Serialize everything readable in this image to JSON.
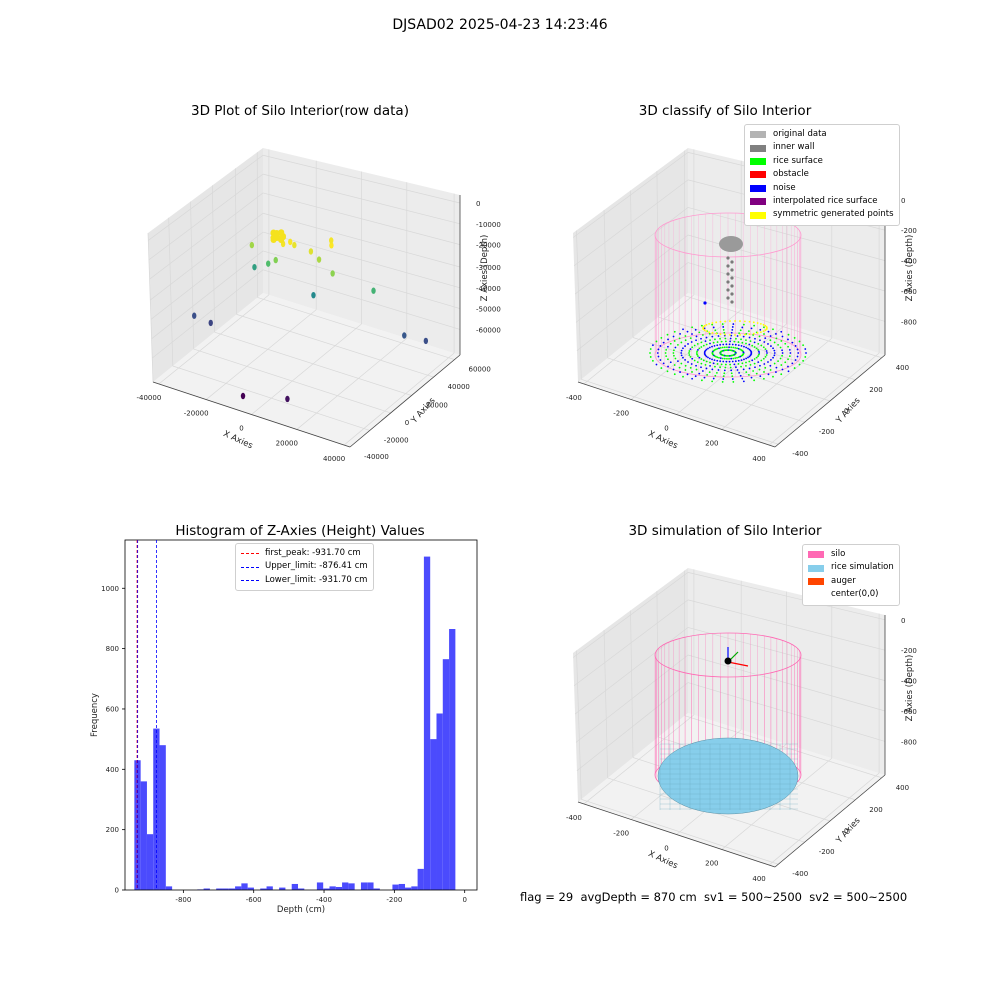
{
  "title": "DJSAD02 2025-04-23 14:23:46",
  "footer": "flag = 29  avgDepth = 870 cm  sv1 = 500~2500  sv2 = 500~2500",
  "chart_data": [
    {
      "type": "scatter",
      "title": "3D Plot of Silo Interior(row data)",
      "xlabel": "X Axies",
      "ylabel": "Y Axies",
      "zlabel": "Z Axies (Depth)",
      "x_ticks": [
        "-40000",
        "-20000",
        "0",
        "20000",
        "40000"
      ],
      "y_ticks": [
        "-40000",
        "-20000",
        "0",
        "20000",
        "40000",
        "60000"
      ],
      "z_ticks": [
        "0",
        "-10000",
        "-20000",
        "-30000",
        "-40000",
        "-50000",
        "-60000"
      ],
      "colormap": "viridis (by depth)",
      "points_xyz": [
        [
          -3000,
          -2000,
          -4000
        ],
        [
          500,
          2000,
          -5000
        ],
        [
          -1000,
          1000,
          -3500
        ],
        [
          8000,
          3000,
          -6000
        ],
        [
          15000,
          9000,
          -3000
        ],
        [
          12000,
          15000,
          -4000
        ],
        [
          -20000,
          2000,
          -12000
        ],
        [
          -8000,
          1000,
          -15000
        ],
        [
          10000,
          7000,
          -11000
        ],
        [
          18000,
          4000,
          -14000
        ],
        [
          -15000,
          8000,
          -22000
        ],
        [
          30000,
          20000,
          -25000
        ],
        [
          -25000,
          15000,
          -30000
        ],
        [
          2000,
          18000,
          -36000
        ],
        [
          40000,
          30000,
          -48000
        ],
        [
          48000,
          35000,
          -50000
        ],
        [
          -42000,
          -10000,
          -50000
        ],
        [
          -35000,
          -8000,
          -52000
        ],
        [
          15000,
          -35000,
          -62000
        ],
        [
          -4000,
          -40000,
          -65000
        ]
      ]
    },
    {
      "type": "scatter",
      "title": "3D classify of Silo Interior",
      "xlabel": "X Axies",
      "ylabel": "Y Axies",
      "zlabel": "Z Axies (Depth)",
      "x_ticks": [
        "-400",
        "-200",
        "0",
        "200",
        "400"
      ],
      "y_ticks": [
        "-400",
        "-200",
        "0",
        "200",
        "400"
      ],
      "z_ticks": [
        "0",
        "-200",
        "-400",
        "-600",
        "-800"
      ],
      "series": [
        {
          "name": "original data",
          "color": "#b3b3b3"
        },
        {
          "name": "inner wall",
          "color": "#808080"
        },
        {
          "name": "rice surface",
          "color": "#00ff00"
        },
        {
          "name": "obstacle",
          "color": "#ff0000"
        },
        {
          "name": "noise",
          "color": "#0000ff"
        },
        {
          "name": "interpolated rice surface",
          "color": "#800080"
        },
        {
          "name": "symmetric generated points",
          "color": "#ffff00"
        }
      ]
    },
    {
      "type": "bar",
      "title": "Histogram of Z-Axies (Height) Values",
      "xlabel": "Depth (cm)",
      "ylabel": "Frequency",
      "xlim": [
        -966,
        35
      ],
      "ylim": [
        0,
        1160
      ],
      "x_ticks": [
        "-800",
        "-600",
        "-400",
        "-200",
        "0"
      ],
      "y_ticks": [
        "0",
        "200",
        "400",
        "600",
        "800",
        "1000"
      ],
      "bin_width": 17.9,
      "bins_left_edge": [
        -939.4,
        -921.5,
        -903.6,
        -885.7,
        -867.8,
        -849.9,
        -832.0,
        -814.1,
        -796.2,
        -778.3,
        -760.4,
        -742.5,
        -724.6,
        -706.7,
        -688.8,
        -670.9,
        -653.0,
        -635.1,
        -617.2,
        -599.3,
        -581.4,
        -563.5,
        -545.6,
        -527.7,
        -509.8,
        -491.9,
        -474.0,
        -456.1,
        -438.2,
        -420.3,
        -402.4,
        -384.5,
        -366.6,
        -348.7,
        -330.8,
        -312.9,
        -295.0,
        -277.1,
        -259.2,
        -241.3,
        -223.4,
        -205.5,
        -187.6,
        -169.7,
        -151.8,
        -133.9,
        -116.0,
        -98.1,
        -80.2,
        -62.3,
        -44.4,
        -26.5,
        -8.6
      ],
      "counts": [
        430,
        360,
        185,
        535,
        480,
        12,
        0,
        0,
        0,
        0,
        2,
        5,
        0,
        5,
        5,
        5,
        12,
        22,
        8,
        0,
        5,
        12,
        0,
        8,
        0,
        20,
        5,
        0,
        0,
        25,
        5,
        12,
        10,
        25,
        22,
        0,
        25,
        25,
        5,
        0,
        0,
        18,
        20,
        8,
        12,
        70,
        1105,
        500,
        585,
        765,
        865,
        0,
        0
      ],
      "lines": [
        {
          "name": "first_peak: -931.70 cm",
          "x": -931.7,
          "color": "#ff0000"
        },
        {
          "name": "Upper_limit: -876.41 cm",
          "x": -876.41,
          "color": "#0000ff"
        },
        {
          "name": "Lower_limit: -931.70 cm",
          "x": -931.7,
          "color": "#0000ff"
        }
      ],
      "bar_color": "#4b4bfd"
    },
    {
      "type": "other",
      "title": "3D simulation of Silo Interior",
      "xlabel": "X Axies",
      "ylabel": "Y Axies",
      "zlabel": "Z Axies (Depth)",
      "x_ticks": [
        "-400",
        "-200",
        "0",
        "200",
        "400"
      ],
      "y_ticks": [
        "-400",
        "-200",
        "0",
        "200",
        "400"
      ],
      "z_ticks": [
        "0",
        "-200",
        "-400",
        "-600",
        "-800"
      ],
      "series": [
        {
          "name": "silo",
          "color": "#ff69b4"
        },
        {
          "name": "rice simulation",
          "color": "#87ceeb"
        },
        {
          "name": "auger",
          "color": "#ff4500"
        },
        {
          "name": "center(0,0)",
          "color": "#000000"
        }
      ]
    }
  ]
}
